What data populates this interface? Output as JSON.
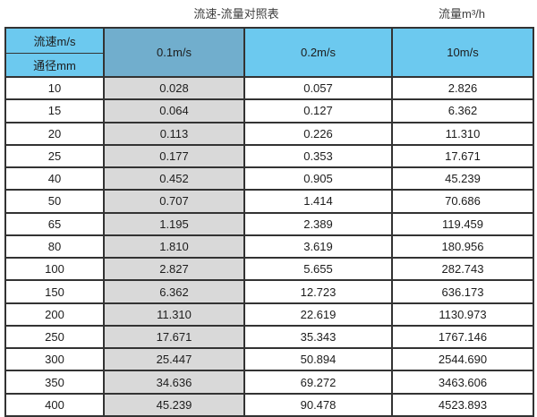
{
  "page": {
    "title_left": "流速-流量对照表",
    "title_right": "流量m³/h"
  },
  "table": {
    "corner_top": "流速m/s",
    "corner_bottom": "通径mm",
    "velocity_headers": [
      "0.1m/s",
      "0.2m/s",
      "10m/s"
    ],
    "rows": [
      {
        "dn": "10",
        "v1": "0.028",
        "v2": "0.057",
        "v3": "2.826"
      },
      {
        "dn": "15",
        "v1": "0.064",
        "v2": "0.127",
        "v3": "6.362"
      },
      {
        "dn": "20",
        "v1": "0.113",
        "v2": "0.226",
        "v3": "11.310"
      },
      {
        "dn": "25",
        "v1": "0.177",
        "v2": "0.353",
        "v3": "17.671"
      },
      {
        "dn": "40",
        "v1": "0.452",
        "v2": "0.905",
        "v3": "45.239"
      },
      {
        "dn": "50",
        "v1": "0.707",
        "v2": "1.414",
        "v3": "70.686"
      },
      {
        "dn": "65",
        "v1": "1.195",
        "v2": "2.389",
        "v3": "119.459"
      },
      {
        "dn": "80",
        "v1": "1.810",
        "v2": "3.619",
        "v3": "180.956"
      },
      {
        "dn": "100",
        "v1": "2.827",
        "v2": "5.655",
        "v3": "282.743"
      },
      {
        "dn": "150",
        "v1": "6.362",
        "v2": "12.723",
        "v3": "636.173"
      },
      {
        "dn": "200",
        "v1": "11.310",
        "v2": "22.619",
        "v3": "1130.973"
      },
      {
        "dn": "250",
        "v1": "17.671",
        "v2": "35.343",
        "v3": "1767.146"
      },
      {
        "dn": "300",
        "v1": "25.447",
        "v2": "50.894",
        "v3": "2544.690"
      },
      {
        "dn": "350",
        "v1": "34.636",
        "v2": "69.272",
        "v3": "3463.606"
      },
      {
        "dn": "400",
        "v1": "45.239",
        "v2": "90.478",
        "v3": "4523.893"
      }
    ]
  },
  "colors": {
    "header_light": "#6cc9ef",
    "header_dark": "#71aecd",
    "gray_column": "#d9d9d9",
    "border": "#333333"
  },
  "chart_data": {
    "type": "table",
    "title": "流速-流量对照表",
    "units_label": "流量m³/h",
    "row_header_label_top": "流速m/s",
    "row_header_label_bottom": "通径mm",
    "columns": [
      "通径mm",
      "0.1m/s",
      "0.2m/s",
      "10m/s"
    ],
    "rows": [
      [
        10,
        0.028,
        0.057,
        2.826
      ],
      [
        15,
        0.064,
        0.127,
        6.362
      ],
      [
        20,
        0.113,
        0.226,
        11.31
      ],
      [
        25,
        0.177,
        0.353,
        17.671
      ],
      [
        40,
        0.452,
        0.905,
        45.239
      ],
      [
        50,
        0.707,
        1.414,
        70.686
      ],
      [
        65,
        1.195,
        2.389,
        119.459
      ],
      [
        80,
        1.81,
        3.619,
        180.956
      ],
      [
        100,
        2.827,
        5.655,
        282.743
      ],
      [
        150,
        6.362,
        12.723,
        636.173
      ],
      [
        200,
        11.31,
        22.619,
        1130.973
      ],
      [
        250,
        17.671,
        35.343,
        1767.146
      ],
      [
        300,
        25.447,
        50.894,
        2544.69
      ],
      [
        350,
        34.636,
        69.272,
        3463.606
      ],
      [
        400,
        45.239,
        90.478,
        4523.893
      ]
    ]
  }
}
